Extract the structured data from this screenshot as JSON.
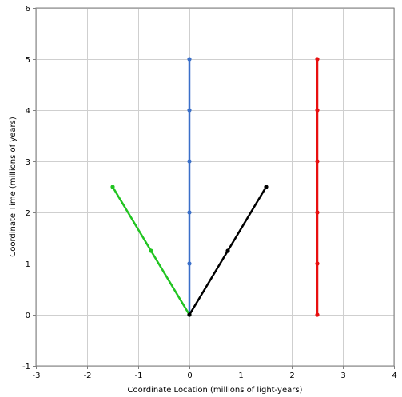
{
  "chart_data": {
    "type": "line",
    "title": "",
    "xlabel": "Coordinate Location (millions of light-years)",
    "ylabel": "Coordinate Time (millions of years)",
    "xlim": [
      -3,
      4
    ],
    "ylim": [
      -1,
      6
    ],
    "x_ticks": [
      "-3",
      "-2",
      "-1",
      "0",
      "1",
      "2",
      "3",
      "4"
    ],
    "y_ticks": [
      "-1",
      "0",
      "1",
      "2",
      "3",
      "4",
      "5",
      "6"
    ],
    "grid": true,
    "legend": "none",
    "series": [
      {
        "color": "#3a6fc9",
        "points": [
          [
            0,
            0
          ],
          [
            0,
            1
          ],
          [
            0,
            2
          ],
          [
            0,
            3
          ],
          [
            0,
            4
          ],
          [
            0,
            5
          ]
        ]
      },
      {
        "color": "#e80f0f",
        "points": [
          [
            2.5,
            0
          ],
          [
            2.5,
            1
          ],
          [
            2.5,
            2
          ],
          [
            2.5,
            3
          ],
          [
            2.5,
            4
          ],
          [
            2.5,
            5
          ]
        ]
      },
      {
        "color": "#21c421",
        "points": [
          [
            0,
            0
          ],
          [
            -0.75,
            1.25
          ],
          [
            -1.5,
            2.5
          ]
        ]
      },
      {
        "color": "#000000",
        "points": [
          [
            0,
            0
          ],
          [
            0.75,
            1.25
          ],
          [
            1.5,
            2.5
          ]
        ]
      }
    ]
  }
}
